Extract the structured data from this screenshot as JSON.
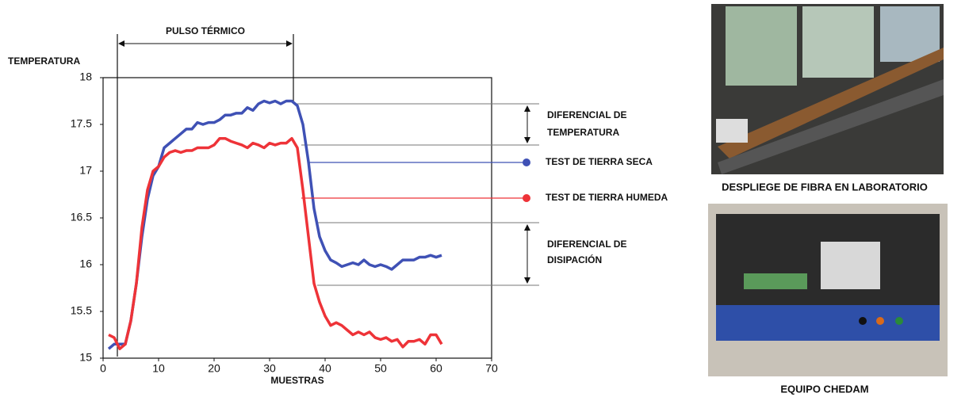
{
  "chart_data": {
    "type": "line",
    "y_label": "TEMPERATURA",
    "x_label": "MUESTRAS",
    "annotations": {
      "pulse": "PULSO TÉRMICO",
      "temp_diff": [
        "DIFERENCIAL DE",
        "TEMPERATURA"
      ],
      "dissipation_diff": [
        "DIFERENCIAL DE",
        "DISIPACIÓN"
      ]
    },
    "x": [
      1,
      2,
      3,
      4,
      5,
      6,
      7,
      8,
      9,
      10,
      11,
      12,
      13,
      14,
      15,
      16,
      17,
      18,
      19,
      20,
      21,
      22,
      23,
      24,
      25,
      26,
      27,
      28,
      29,
      30,
      31,
      32,
      33,
      34,
      35,
      36,
      37,
      38,
      39,
      40,
      41,
      42,
      43,
      44,
      45,
      46,
      47,
      48,
      49,
      50,
      51,
      52,
      53,
      54,
      55,
      56,
      57,
      58,
      59,
      60,
      61
    ],
    "series": [
      {
        "name": "TEST DE TIERRA SECA",
        "color": "#3f51b5",
        "values": [
          15.1,
          15.15,
          15.15,
          15.15,
          15.4,
          15.8,
          16.3,
          16.7,
          16.95,
          17.05,
          17.25,
          17.3,
          17.35,
          17.4,
          17.45,
          17.45,
          17.52,
          17.5,
          17.52,
          17.52,
          17.55,
          17.6,
          17.6,
          17.62,
          17.62,
          17.68,
          17.65,
          17.72,
          17.75,
          17.73,
          17.75,
          17.72,
          17.75,
          17.75,
          17.7,
          17.5,
          17.1,
          16.6,
          16.3,
          16.15,
          16.05,
          16.02,
          15.98,
          16.0,
          16.02,
          16.0,
          16.05,
          16.0,
          15.98,
          16.0,
          15.98,
          15.95,
          16.0,
          16.05,
          16.05,
          16.05,
          16.08,
          16.08,
          16.1,
          16.08,
          16.1
        ]
      },
      {
        "name": "TEST DE TIERRA HUMEDA",
        "color": "#ee3338",
        "values": [
          15.25,
          15.22,
          15.1,
          15.15,
          15.4,
          15.8,
          16.4,
          16.8,
          17.0,
          17.05,
          17.15,
          17.2,
          17.22,
          17.2,
          17.22,
          17.22,
          17.25,
          17.25,
          17.25,
          17.28,
          17.35,
          17.35,
          17.32,
          17.3,
          17.28,
          17.25,
          17.3,
          17.28,
          17.25,
          17.3,
          17.28,
          17.3,
          17.3,
          17.35,
          17.25,
          16.8,
          16.3,
          15.8,
          15.6,
          15.45,
          15.35,
          15.38,
          15.35,
          15.3,
          15.25,
          15.28,
          15.25,
          15.28,
          15.22,
          15.2,
          15.22,
          15.18,
          15.2,
          15.12,
          15.18,
          15.18,
          15.2,
          15.15,
          15.25,
          15.25,
          15.15
        ]
      }
    ],
    "xlim": [
      0,
      70
    ],
    "xticks": [
      0,
      10,
      20,
      30,
      40,
      50,
      60,
      70
    ],
    "ylim": [
      15,
      18
    ],
    "yticks": [
      15,
      15.5,
      16,
      16.5,
      17,
      17.5,
      18
    ]
  },
  "photos": [
    {
      "caption": "DESPLIEGE DE FIBRA EN LABORATORIO"
    },
    {
      "caption": "EQUIPO CHEDAM"
    }
  ]
}
